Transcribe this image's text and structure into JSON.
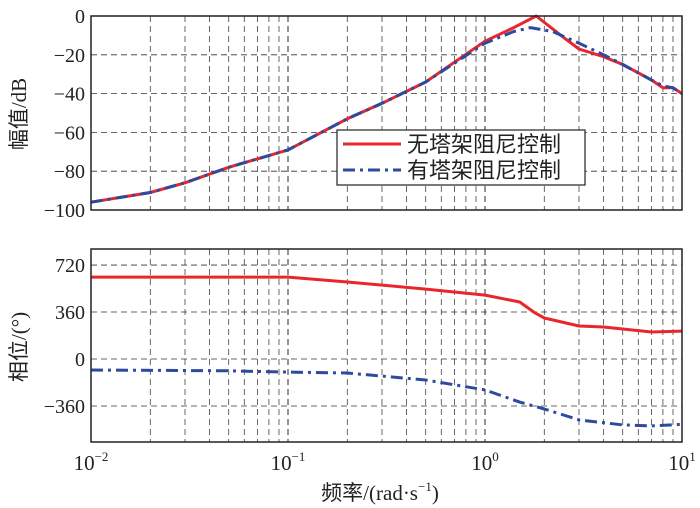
{
  "chart_data": [
    {
      "type": "line",
      "panel": "magnitude",
      "ylabel": "幅值/dB",
      "xscale": "log",
      "xlim": [
        0.01,
        10
      ],
      "ylim": [
        -100,
        0
      ],
      "yticks": [
        0,
        -20,
        -40,
        -60,
        -80,
        -100
      ],
      "ytick_labels": [
        "0",
        "−20",
        "−40",
        "−60",
        "−80",
        "−100"
      ],
      "grid": true,
      "legend": {
        "placement": "center-right",
        "entries": [
          "无塔架阻尼控制",
          "有塔架阻尼控制"
        ]
      },
      "series": [
        {
          "name": "无塔架阻尼控制",
          "color": "#e8262b",
          "style": "solid",
          "x": [
            0.01,
            0.02,
            0.03,
            0.05,
            0.1,
            0.2,
            0.3,
            0.5,
            1.0,
            1.4,
            1.82,
            2.5,
            3,
            4,
            5,
            7,
            8,
            9,
            10
          ],
          "y": [
            -96,
            -91,
            -86,
            -78,
            -69,
            -53,
            -45,
            -34,
            -13,
            -6,
            0,
            -11,
            -17,
            -21,
            -25,
            -33,
            -37,
            -37,
            -40
          ]
        },
        {
          "name": "有塔架阻尼控制",
          "color": "#2e4a9e",
          "style": "dashdot",
          "x": [
            0.01,
            0.02,
            0.03,
            0.05,
            0.1,
            0.2,
            0.3,
            0.5,
            1.0,
            1.4,
            1.7,
            2.2,
            3,
            4,
            5,
            7,
            8,
            9,
            10
          ],
          "y": [
            -96,
            -91,
            -86,
            -78,
            -69,
            -53,
            -45,
            -34,
            -14,
            -8,
            -6,
            -8,
            -14,
            -20,
            -25,
            -33,
            -36,
            -37,
            -40
          ]
        }
      ]
    },
    {
      "type": "line",
      "panel": "phase",
      "ylabel": "相位/(°)",
      "xlabel": "频率/(rad·s",
      "xlabel_sup": "−1",
      "xlabel_end": ")",
      "xscale": "log",
      "xlim": [
        0.01,
        10
      ],
      "ylim": [
        -636,
        843
      ],
      "yticks": [
        720,
        360,
        0,
        -360
      ],
      "ytick_labels": [
        "720",
        "360",
        "0",
        "−360"
      ],
      "xtick_base": [
        "10",
        "10",
        "10",
        "10"
      ],
      "xtick_exp": [
        "−2",
        "−1",
        "0",
        "1"
      ],
      "grid": true,
      "series": [
        {
          "name": "无塔架阻尼控制",
          "color": "#e8262b",
          "style": "solid",
          "x": [
            0.01,
            0.05,
            0.1,
            0.2,
            0.5,
            1.0,
            1.5,
            1.8,
            2,
            3,
            4,
            5,
            7,
            10
          ],
          "y": [
            628,
            628,
            628,
            590,
            536,
            490,
            437,
            352,
            314,
            253,
            245,
            230,
            207,
            214
          ]
        },
        {
          "name": "有塔架阻尼控制",
          "color": "#2e4a9e",
          "style": "dashdot",
          "x": [
            0.01,
            0.05,
            0.1,
            0.2,
            0.5,
            1.0,
            1.5,
            2,
            3,
            5,
            7,
            10
          ],
          "y": [
            -84,
            -90,
            -100,
            -107,
            -161,
            -237,
            -330,
            -383,
            -467,
            -505,
            -513,
            -500
          ]
        }
      ]
    }
  ]
}
